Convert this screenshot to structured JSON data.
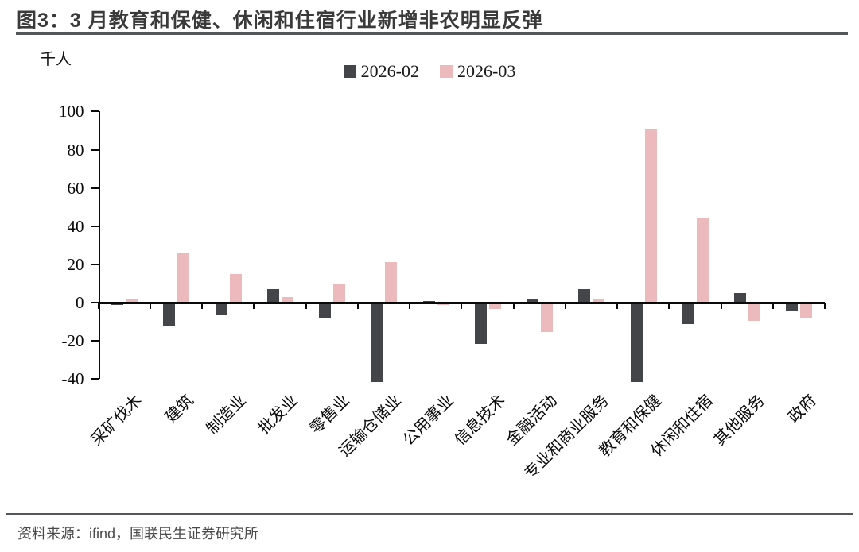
{
  "title": "图3：3 月教育和保健、休闲和住宿行业新增非农明显反弹",
  "unit_label": "千人",
  "footer": {
    "source_text": "资料来源：ifind，国联民生证券研究所"
  },
  "colors": {
    "series_dark": "#434549",
    "series_pink": "#ecb9bc",
    "axis": "#0a0a0a",
    "rule": "#53565a",
    "title_text": "#3a3a3a",
    "footer_text": "#4b4b4b"
  },
  "chart_data": {
    "type": "bar",
    "title": "图3：3 月教育和保健、休闲和住宿行业新增非农明显反弹",
    "ylabel": "千人",
    "xlabel": "",
    "ylim": [
      -40,
      100
    ],
    "yticks": [
      100,
      80,
      60,
      40,
      20,
      0,
      -20,
      -40
    ],
    "grid": false,
    "legend_position": "top-center",
    "categories": [
      "采矿伐木",
      "建筑",
      "制造业",
      "批发业",
      "零售业",
      "运输仓储业",
      "公用事业",
      "信息技术",
      "金融活动",
      "专业和商业服务",
      "教育和保健",
      "休闲和住宿",
      "其他服务",
      "政府"
    ],
    "series": [
      {
        "name": "2026-02",
        "color": "#434549",
        "values": [
          -1,
          -12,
          -6,
          7,
          -8,
          -41,
          1,
          -21,
          2,
          7,
          -41,
          -11,
          5,
          -4
        ]
      },
      {
        "name": "2026-03",
        "color": "#ecb9bc",
        "values": [
          2,
          26,
          15,
          3,
          10,
          21,
          -1,
          -3,
          -15,
          2,
          91,
          44,
          -9,
          -8
        ]
      }
    ]
  }
}
